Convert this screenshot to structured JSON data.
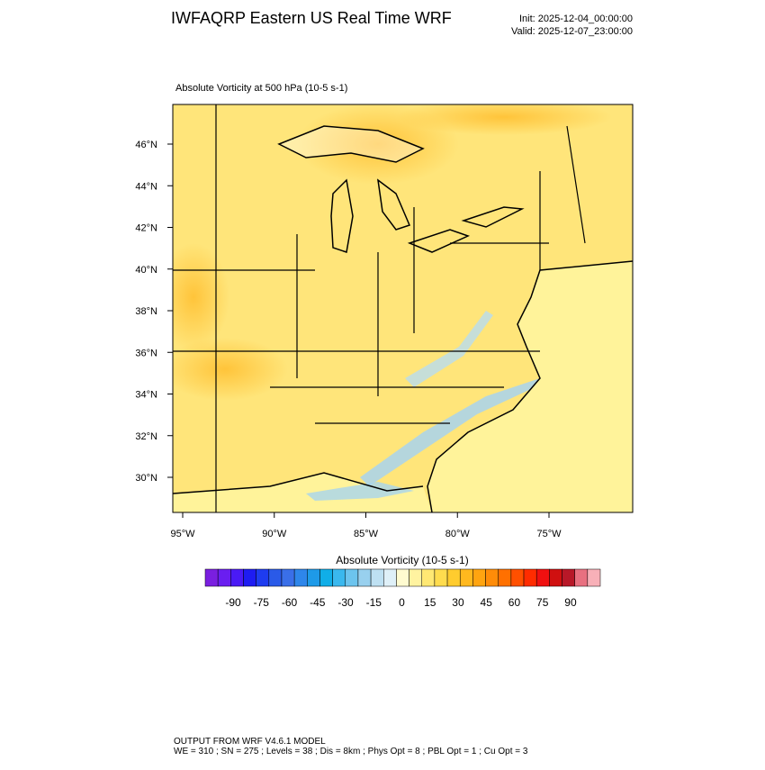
{
  "header": {
    "title": "IWFAQRP Eastern US Real Time WRF",
    "init": "Init: 2025-12-04_00:00:00",
    "valid": "Valid: 2025-12-07_23:00:00"
  },
  "map": {
    "subtitle": "Absolute Vorticity at 500 hPa   (10-5 s-1)",
    "lat_labels": [
      "46°N",
      "44°N",
      "42°N",
      "40°N",
      "38°N",
      "36°N",
      "34°N",
      "32°N",
      "30°N"
    ],
    "lon_labels": [
      "95°W",
      "90°W",
      "85°W",
      "80°W",
      "75°W"
    ]
  },
  "colorbar": {
    "title": "Absolute Vorticity  (10-5 s-1)",
    "ticks": [
      -90,
      -75,
      -60,
      -45,
      -30,
      -15,
      0,
      15,
      30,
      45,
      60,
      75,
      90
    ],
    "colors": [
      "#7a1fe0",
      "#6a1ef0",
      "#4a1af5",
      "#1e1cf2",
      "#1e3cf0",
      "#2a5ae8",
      "#3a6fe8",
      "#2e86ea",
      "#1e9ae8",
      "#10aee8",
      "#3ab8ee",
      "#6cc4ee",
      "#98d0ee",
      "#bee0f2",
      "#dff0f8",
      "#fffbd0",
      "#fff3a0",
      "#ffe873",
      "#ffdc4e",
      "#ffcc2e",
      "#ffb81e",
      "#ffa410",
      "#ff8c08",
      "#ff7000",
      "#ff5000",
      "#ff2c00",
      "#f01010",
      "#d01010",
      "#b81828",
      "#e87080",
      "#f8b0b8"
    ]
  },
  "footer": {
    "line1": "OUTPUT FROM WRF V4.6.1 MODEL",
    "line2": "WE = 310 ; SN = 275 ; Levels = 38 ; Dis = 8km ; Phys Opt = 8 ; PBL Opt = 1 ; Cu Opt = 3"
  }
}
